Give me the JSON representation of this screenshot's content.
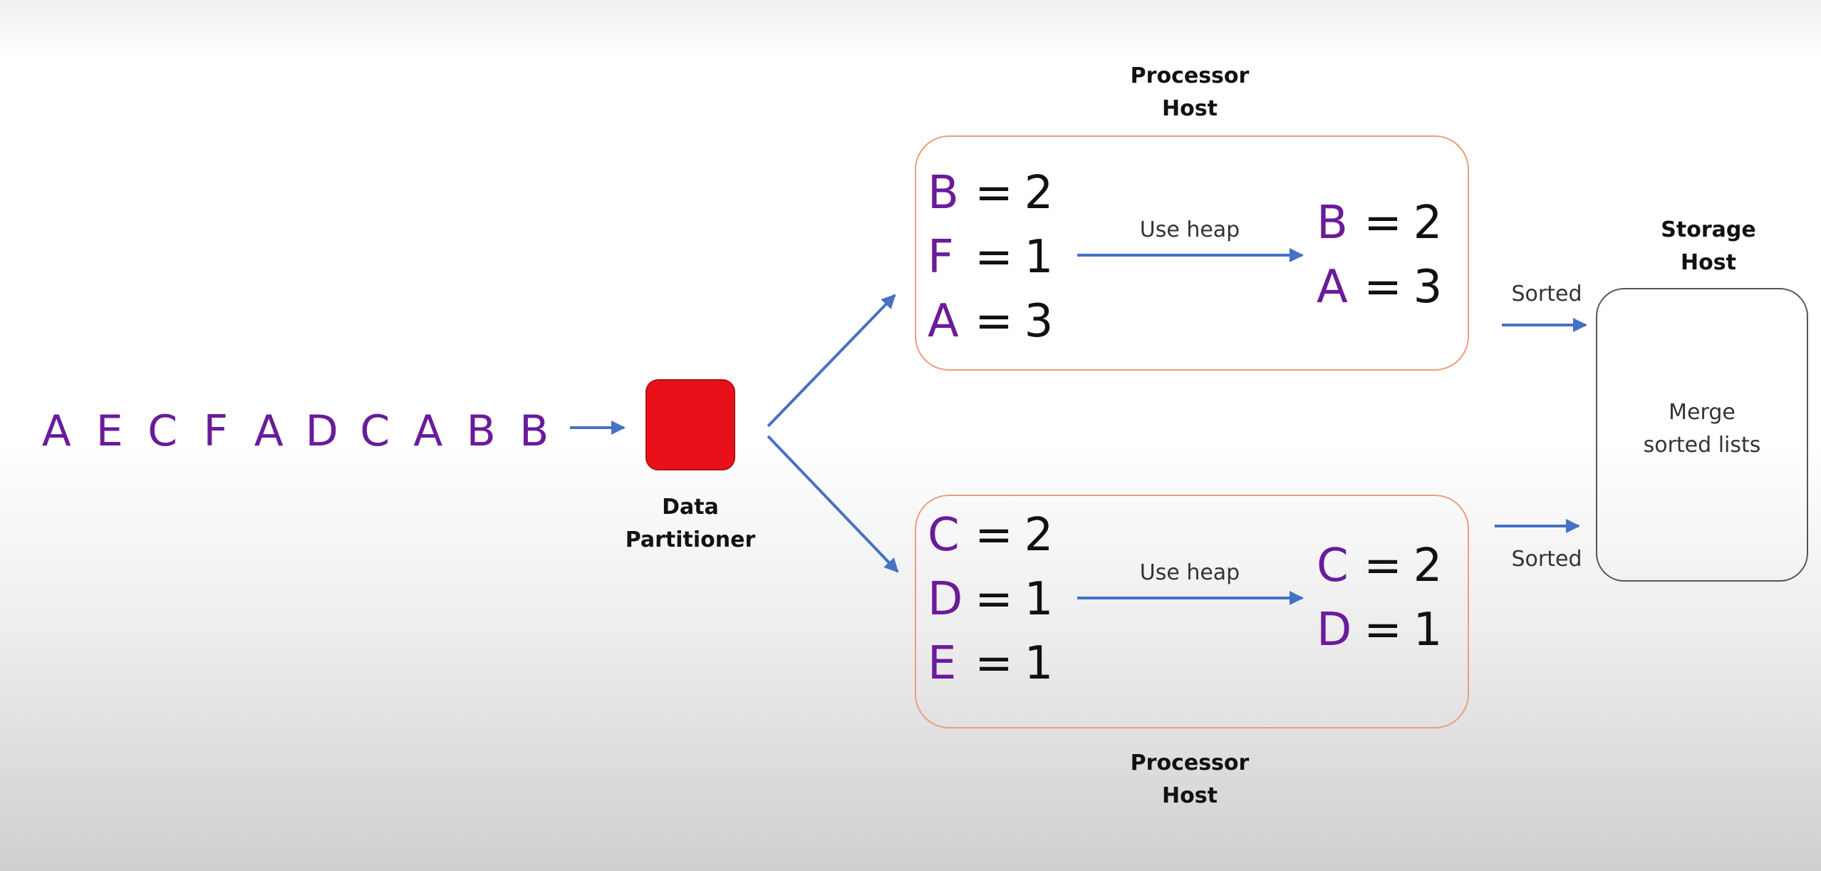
{
  "stream": [
    "A",
    "E",
    "C",
    "F",
    "A",
    "D",
    "C",
    "A",
    "B",
    "B"
  ],
  "partitioner": {
    "label_line1": "Data",
    "label_line2": "Partitioner"
  },
  "top_host": {
    "title_line1": "Processor",
    "title_line2": "Host",
    "counts": [
      {
        "key": "B",
        "eq": "=",
        "value": "2"
      },
      {
        "key": "F",
        "eq": "=",
        "value": "1"
      },
      {
        "key": "A",
        "eq": "=",
        "value": "3"
      }
    ],
    "arrow_label": "Use heap",
    "result": [
      {
        "key": "B",
        "eq": "=",
        "value": "2"
      },
      {
        "key": "A",
        "eq": "=",
        "value": "3"
      }
    ],
    "output_label": "Sorted"
  },
  "bottom_host": {
    "title_line1": "Processor",
    "title_line2": "Host",
    "counts": [
      {
        "key": "C",
        "eq": "=",
        "value": "2"
      },
      {
        "key": "D",
        "eq": "=",
        "value": "1"
      },
      {
        "key": "E",
        "eq": "=",
        "value": "1"
      }
    ],
    "arrow_label": "Use heap",
    "result": [
      {
        "key": "C",
        "eq": "=",
        "value": "2"
      },
      {
        "key": "D",
        "eq": "=",
        "value": "1"
      }
    ],
    "output_label": "Sorted"
  },
  "storage": {
    "title_line1": "Storage",
    "title_line2": "Host",
    "body_line1": "Merge",
    "body_line2": "sorted lists"
  },
  "colors": {
    "letter": "#6a1b9a",
    "arrow": "#4472c4",
    "partitioner": "#e8111a",
    "processor_border": "#e8a07a",
    "storage_border": "#555555"
  }
}
